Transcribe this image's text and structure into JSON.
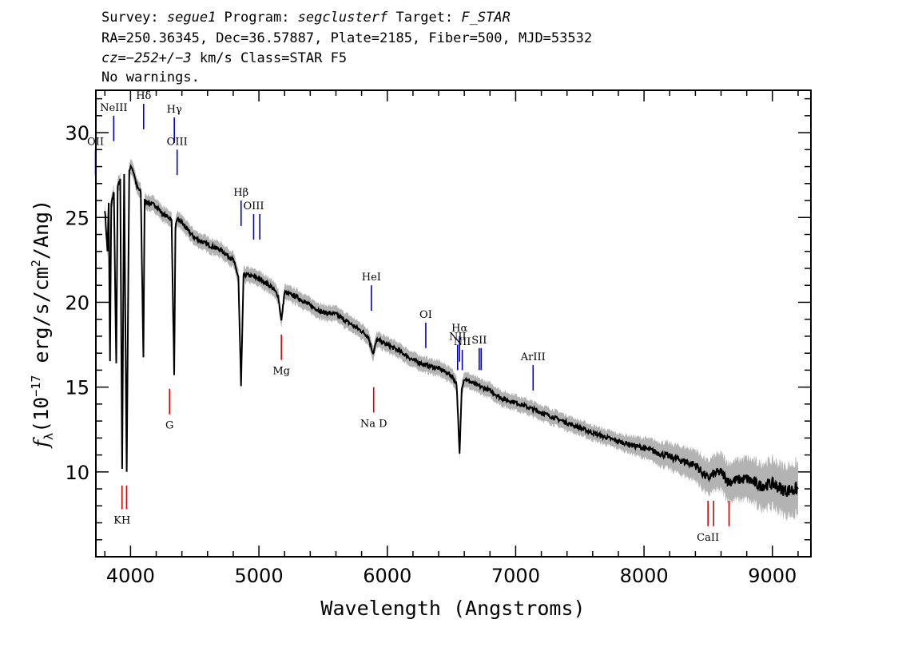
{
  "header": {
    "line1": {
      "survey_label": "Survey: ",
      "survey": "segue1",
      "program_label": " Program: ",
      "program": "segclusterf",
      "target_label": " Target: ",
      "target": "F_STAR"
    },
    "line2": "RA=250.36345, Dec=36.57887, Plate=2185, Fiber=500, MJD=53532",
    "line3": {
      "cz_value": "cz=−252+/−3",
      "rest": " km/s Class=STAR F5"
    },
    "line4": "No warnings."
  },
  "chart_data": {
    "type": "line",
    "xlabel": "Wavelength (Angstroms)",
    "ylabel": "f_λ (10^-17 erg/s/cm^2/Ang)",
    "ylabel_parts": {
      "prefix": "(10",
      "exp1": "−17",
      "mid": " erg/s/cm",
      "exp2": "2",
      "suffix": "/Ang)",
      "symbol": "f",
      "sub": "λ"
    },
    "xlim": [
      3730,
      9300
    ],
    "ylim": [
      5.0,
      32.5
    ],
    "x_ticks": [
      4000,
      5000,
      6000,
      7000,
      8000,
      9000
    ],
    "y_ticks": [
      10,
      15,
      20,
      25,
      30
    ],
    "grid": false,
    "series": [
      {
        "color": "#000000",
        "x": [
          3800,
          3820,
          3830,
          3840,
          3850,
          3870,
          3889,
          3900,
          3920,
          3935,
          3950,
          3970,
          3990,
          4010,
          4030,
          4050,
          4080,
          4100,
          4110,
          4130,
          4160,
          4200,
          4250,
          4300,
          4320,
          4340,
          4350,
          4370,
          4400,
          4450,
          4500,
          4600,
          4700,
          4800,
          4840,
          4861,
          4880,
          4920,
          5000,
          5100,
          5150,
          5175,
          5200,
          5300,
          5400,
          5500,
          5600,
          5700,
          5800,
          5850,
          5890,
          5920,
          6000,
          6100,
          6200,
          6300,
          6400,
          6500,
          6540,
          6563,
          6580,
          6600,
          6700,
          6800,
          6900,
          7000,
          7200,
          7400,
          7600,
          7800,
          8000,
          8200,
          8400,
          8498,
          8542,
          8600,
          8662,
          8700,
          8800,
          8900,
          9000,
          9100,
          9200
        ],
        "y": [
          25.5,
          23,
          25.8,
          16.5,
          25.8,
          26.5,
          16.3,
          26.8,
          27.2,
          10.2,
          27.5,
          10.0,
          27.8,
          28.0,
          27.5,
          26.8,
          26.5,
          16.8,
          26.0,
          25.9,
          25.8,
          25.7,
          25.2,
          25.0,
          24.8,
          15.8,
          24.5,
          24.9,
          24.7,
          24.2,
          23.8,
          23.4,
          23.1,
          22.5,
          21.5,
          15.0,
          21.6,
          21.6,
          21.4,
          20.9,
          20.4,
          18.9,
          20.6,
          20.3,
          19.8,
          19.4,
          19.3,
          18.8,
          18.3,
          18.0,
          17.0,
          17.8,
          17.5,
          17.1,
          16.6,
          16.3,
          16.1,
          15.7,
          15.2,
          11.0,
          15.0,
          15.5,
          15.1,
          14.8,
          14.3,
          14.1,
          13.5,
          12.9,
          12.3,
          11.8,
          11.4,
          10.9,
          10.4,
          9.6,
          9.9,
          10.0,
          9.4,
          9.5,
          9.6,
          9.2,
          9.3,
          8.9,
          9.0
        ]
      }
    ],
    "emission_lines": [
      {
        "name": "OII",
        "x": 3727,
        "y": [
          27.5,
          29.0
        ]
      },
      {
        "name": "NeIII",
        "x": 3869,
        "y": [
          29.5,
          31.0
        ]
      },
      {
        "name": "Hδ",
        "x": 4102,
        "y": [
          30.2,
          31.7
        ]
      },
      {
        "name": "Hγ",
        "x": 4341,
        "y": [
          29.4,
          30.9
        ]
      },
      {
        "name": "OIII",
        "x": 4363,
        "y": [
          27.5,
          29.0
        ]
      },
      {
        "name": "Hβ",
        "x": 4861,
        "y": [
          24.5,
          26.0
        ]
      },
      {
        "name": "OIII",
        "x": 4959,
        "y": [
          23.7,
          25.2
        ]
      },
      {
        "name": "",
        "x": 5007,
        "y": [
          23.7,
          25.2
        ]
      },
      {
        "name": "HeI",
        "x": 5876,
        "y": [
          19.5,
          21.0
        ]
      },
      {
        "name": "OI",
        "x": 6300,
        "y": [
          17.3,
          18.8
        ]
      },
      {
        "name": "NII",
        "x": 6548,
        "y": [
          16.0,
          17.5
        ]
      },
      {
        "name": "Hα",
        "x": 6563,
        "y": [
          16.5,
          18.0
        ]
      },
      {
        "name": "NII",
        "x": 6584,
        "y": [
          16.0,
          17.2
        ]
      },
      {
        "name": "SII",
        "x": 6716,
        "y": [
          16.0,
          17.3
        ]
      },
      {
        "name": "",
        "x": 6731,
        "y": [
          16.0,
          17.3
        ]
      },
      {
        "name": "ArIII",
        "x": 7136,
        "y": [
          14.8,
          16.3
        ]
      }
    ],
    "absorption_lines": [
      {
        "name": "KH",
        "x": 3934,
        "y": [
          7.8,
          9.2
        ]
      },
      {
        "name": "",
        "x": 3969,
        "y": [
          7.8,
          9.2
        ]
      },
      {
        "name": "G",
        "x": 4304,
        "y": [
          13.4,
          14.9
        ]
      },
      {
        "name": "Mg",
        "x": 5175,
        "y": [
          16.6,
          18.1
        ]
      },
      {
        "name": "Na D",
        "x": 5894,
        "y": [
          13.5,
          15.0
        ]
      },
      {
        "name": "CaII",
        "x": 8498,
        "y": [
          6.8,
          8.3
        ]
      },
      {
        "name": "",
        "x": 8542,
        "y": [
          6.8,
          8.3
        ]
      },
      {
        "name": "",
        "x": 8662,
        "y": [
          6.8,
          8.3
        ]
      }
    ],
    "colors": {
      "flux": "#000000",
      "error": "#b3b3b3",
      "emission": "#0000cc",
      "absorption": "#dd0000"
    }
  }
}
